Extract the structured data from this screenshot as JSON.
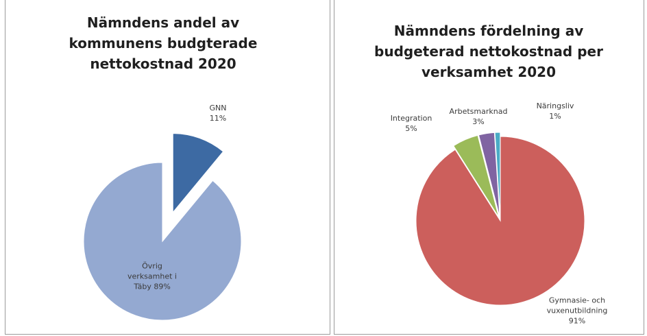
{
  "chart_data": [
    {
      "type": "pie",
      "title": "Nämndens andel av kommunens budgterade nettokostnad 2020",
      "categories": [
        "GNN",
        "Övrig verksamhet i Täby"
      ],
      "values": [
        11,
        89
      ],
      "value_labels": [
        "11%",
        "89%"
      ],
      "colors": [
        "#3d6aa3",
        "#94a9d1"
      ]
    },
    {
      "type": "pie",
      "title": "Nämndens fördelning av budgeterad nettokostnad per verksamhet 2020",
      "categories": [
        "Gymnasie- och vuxenutbildning",
        "Integration",
        "Arbetsmarknad",
        "Näringsliv"
      ],
      "values": [
        91,
        5,
        3,
        1
      ],
      "value_labels": [
        "91%",
        "5%",
        "3%",
        "1%"
      ],
      "colors": [
        "#cc5f5c",
        "#9bbb59",
        "#8064a2",
        "#4bacc6"
      ]
    }
  ]
}
